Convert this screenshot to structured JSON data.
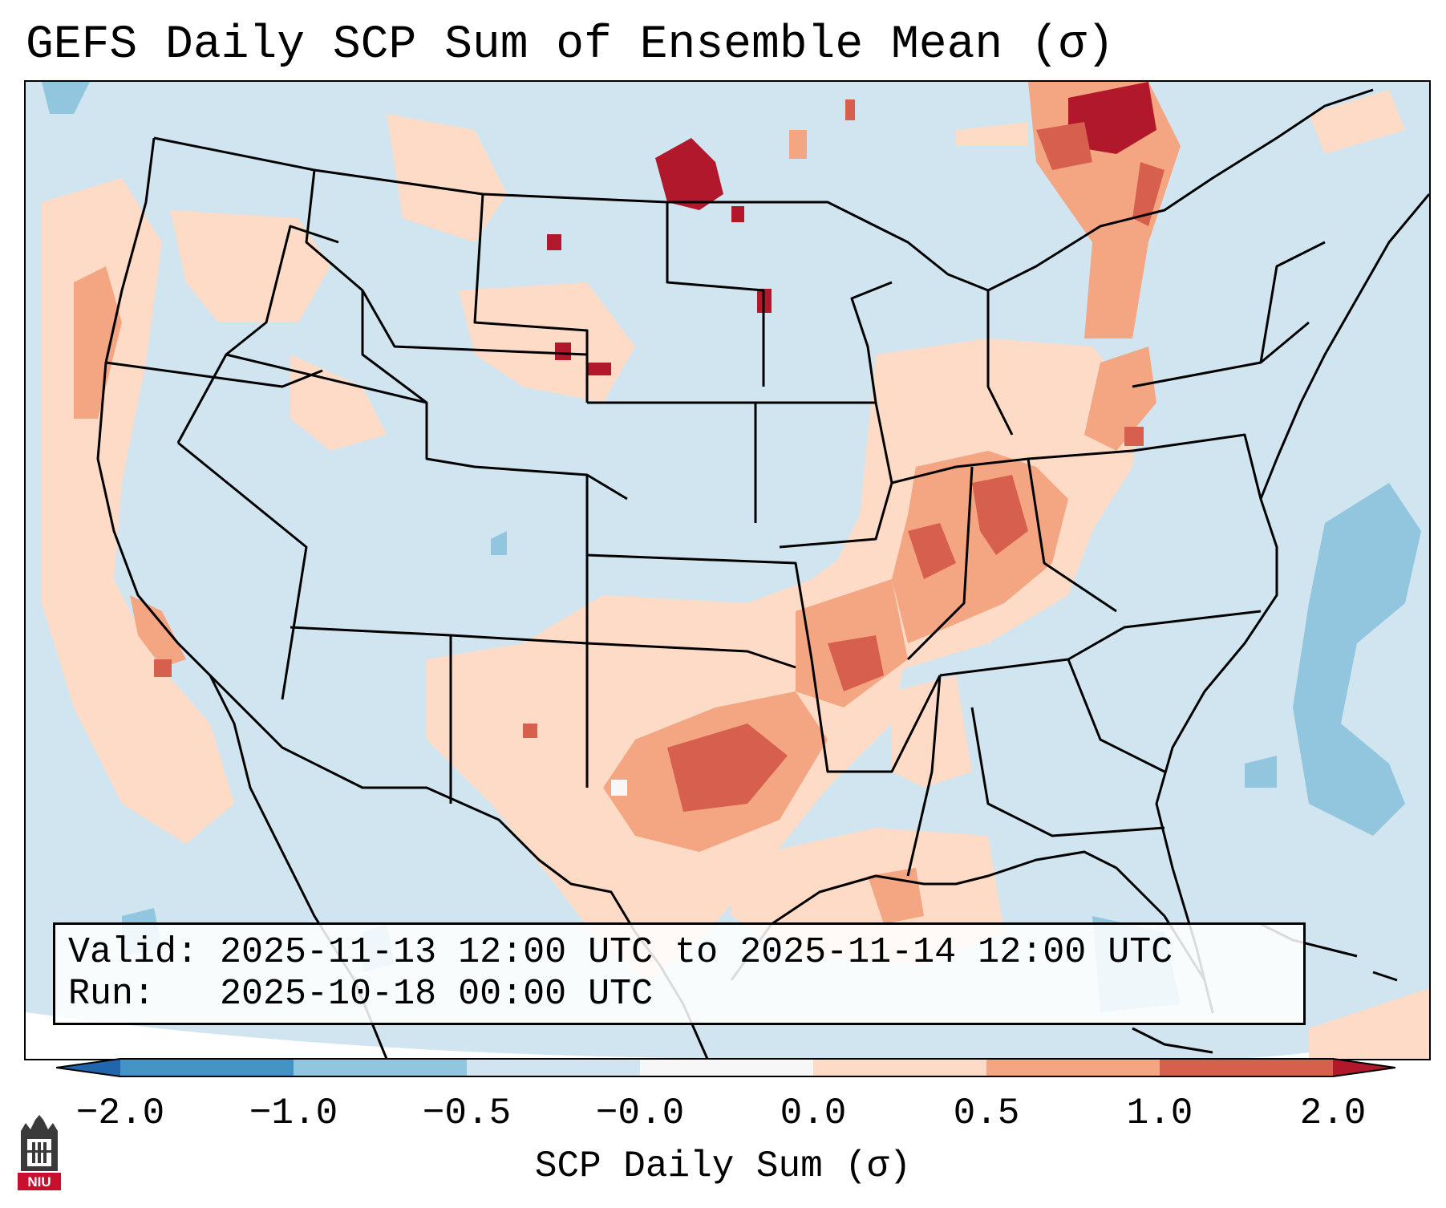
{
  "title": "GEFS Daily SCP Sum of Ensemble Mean (σ)",
  "info": {
    "valid": "Valid: 2025-11-13 12:00 UTC to 2025-11-14 12:00 UTC",
    "run": "Run:   2025-10-18 00:00 UTC"
  },
  "colorbar": {
    "label": "SCP Daily Sum (σ)",
    "ticks": [
      "−2.0",
      "−1.0",
      "−0.5",
      "−0.0",
      "0.0",
      "0.5",
      "1.0",
      "2.0"
    ],
    "bins": [
      {
        "range": "< -2.0",
        "color": "#2166ac"
      },
      {
        "range": "-2.0 to -1.0",
        "color": "#4393c3"
      },
      {
        "range": "-1.0 to -0.5",
        "color": "#92c5de"
      },
      {
        "range": "-0.5 to -0.0",
        "color": "#d1e5f0"
      },
      {
        "range": "-0.0 to 0.0",
        "color": "#f7f7f7"
      },
      {
        "range": "0.0 to 0.5",
        "color": "#fddbc7"
      },
      {
        "range": "0.5 to 1.0",
        "color": "#f4a582"
      },
      {
        "range": "1.0 to 2.0",
        "color": "#d6604d"
      },
      {
        "range": "> 2.0",
        "color": "#b2182b"
      }
    ]
  },
  "map": {
    "region": "Contiguous United States",
    "field": "SCP daily sum anomaly",
    "background_bin": "-0.5 to -0.0",
    "features": [
      "state boundaries",
      "coastlines",
      "international borders"
    ]
  },
  "logo": {
    "text": "NIU",
    "color": "#c8102e"
  }
}
